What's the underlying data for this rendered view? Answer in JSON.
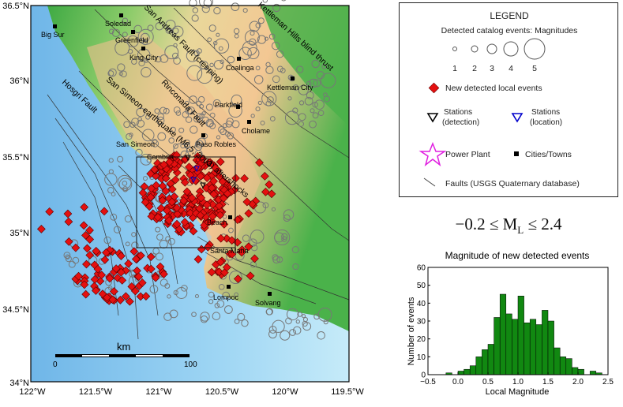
{
  "map": {
    "lat_labels": [
      "36.5°N",
      "36°N",
      "35.5°N",
      "35°N",
      "34.5°N",
      "34°N"
    ],
    "lon_labels": [
      "122°W",
      "121.5°W",
      "121°W",
      "120.5°W",
      "120°W",
      "119.5°W"
    ],
    "faults": [
      "San Andreas Fault (creeping)",
      "Kettleman Hills blind thrust",
      "Rinconada Fault",
      "Hosgri Fault",
      "San Simeon earthquake (M6.5, 2003) aftershocks"
    ],
    "cities": [
      "Big Sur",
      "Soledad",
      "Greenfield",
      "King City",
      "Coalinga",
      "Kettleman City",
      "Parkfield",
      "Cholame",
      "San Simeon",
      "Paso Robles",
      "Cambria",
      "Beach",
      "Santa Maria",
      "Lompoc",
      "Solvang"
    ],
    "scalebar": {
      "title": "km",
      "start": "0",
      "end": "100"
    }
  },
  "legend": {
    "title": "LEGEND",
    "catalog_label": "Detected catalog events: Magnitudes",
    "magnitudes": [
      "1",
      "2",
      "3",
      "4",
      "5"
    ],
    "new_events": "New detected local events",
    "stations_detection": "Stations\n(detection)",
    "stations_location": "Stations\n(location)",
    "power_plant": "Power Plant",
    "cities": "Cities/Towns",
    "faults": "Faults (USGS Quaternary database)"
  },
  "formula": {
    "prefix": "−0.2 ≤ M",
    "sub": "L",
    "suffix": " ≤ 2.4"
  },
  "chart_data": {
    "type": "bar",
    "title": "Magnitude of new detected events",
    "xlabel": "Local Magnitude",
    "ylabel": "Number of events",
    "xlim": [
      -0.5,
      2.5
    ],
    "ylim": [
      0,
      60
    ],
    "x_ticks": [
      "−0.5",
      "0.0",
      "0.5",
      "1.0",
      "1.5",
      "2.0",
      "2.5"
    ],
    "y_ticks": [
      "0",
      "10",
      "20",
      "30",
      "40",
      "50",
      "60"
    ],
    "bin_width": 0.1,
    "bin_starts": [
      -0.2,
      -0.1,
      0.0,
      0.1,
      0.2,
      0.3,
      0.4,
      0.5,
      0.6,
      0.7,
      0.8,
      0.9,
      1.0,
      1.1,
      1.2,
      1.3,
      1.4,
      1.5,
      1.6,
      1.7,
      1.8,
      1.9,
      2.0,
      2.1,
      2.2,
      2.3
    ],
    "values": [
      1,
      0,
      2,
      3,
      5,
      10,
      14,
      17,
      32,
      45,
      34,
      31,
      44,
      29,
      31,
      28,
      36,
      30,
      15,
      10,
      9,
      4,
      3,
      0,
      2,
      1
    ],
    "color": "#118811"
  }
}
